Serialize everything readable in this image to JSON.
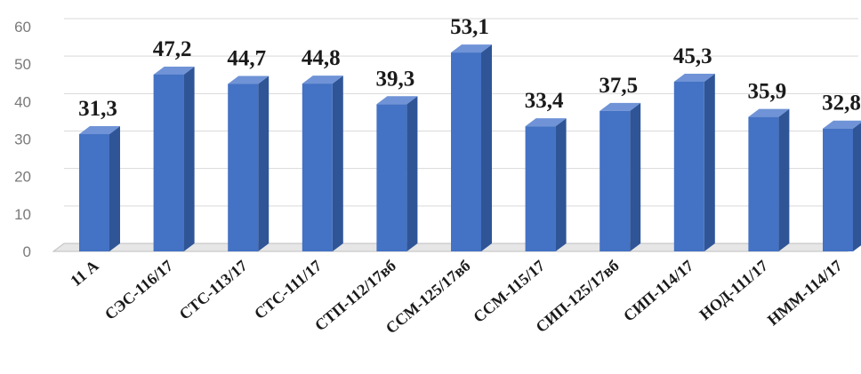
{
  "chart_data": {
    "type": "bar",
    "title": "",
    "xlabel": "",
    "ylabel": "",
    "categories": [
      "11 А",
      "СЭС-116/17",
      "СТС-113/17",
      "СТС-111/17",
      "СТП-112/17вб",
      "ССМ-125/17вб",
      "ССМ-115/17",
      "СИП-125/17вб",
      "СИП-114/17",
      "НОД-111/17",
      "НММ-114/17"
    ],
    "values": [
      31.3,
      47.2,
      44.7,
      44.8,
      39.3,
      53.1,
      33.4,
      37.5,
      45.3,
      35.9,
      32.8
    ],
    "value_labels": [
      "31,3",
      "47,2",
      "44,7",
      "44,8",
      "39,3",
      "53,1",
      "33,4",
      "37,5",
      "45,3",
      "35,9",
      "32,8"
    ],
    "ylim": [
      0,
      60
    ],
    "yticks": [
      0,
      10,
      20,
      30,
      40,
      50,
      60
    ],
    "grid": true,
    "legend": "none",
    "style": "3d-column",
    "colors": {
      "bar_front": "#4472c4",
      "bar_side": "#2f5597",
      "bar_top": "#6f93d6",
      "floor": "#bfbfbf"
    }
  }
}
